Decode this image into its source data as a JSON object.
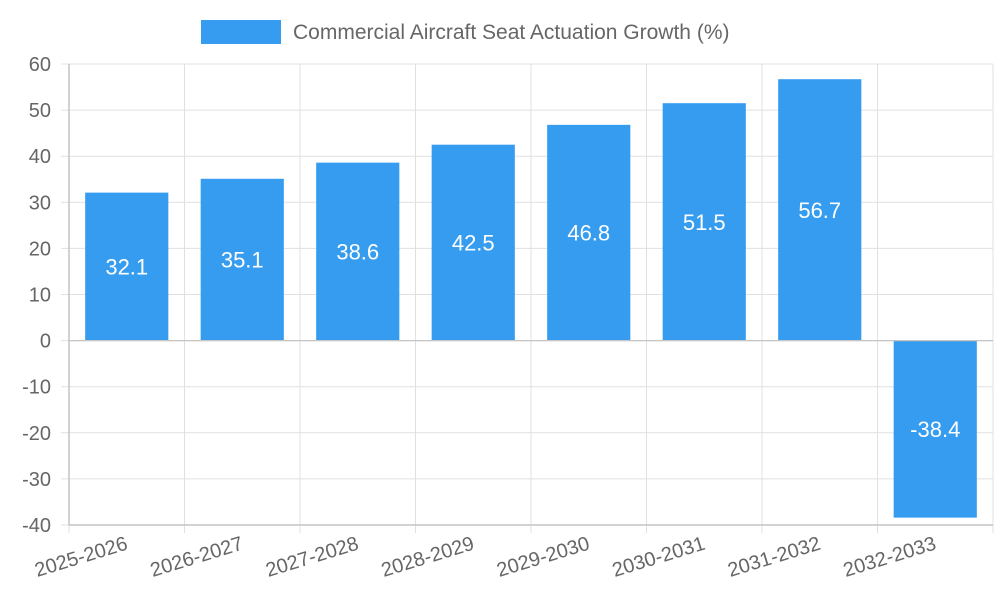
{
  "chart_data": {
    "type": "bar",
    "title": "",
    "xlabel": "",
    "ylabel": "",
    "categories": [
      "2025-2026",
      "2026-2027",
      "2027-2028",
      "2028-2029",
      "2029-2030",
      "2030-2031",
      "2031-2032",
      "2032-2033"
    ],
    "series": [
      {
        "name": "Commercial Aircraft Seat Actuation Growth (%)",
        "values": [
          32.1,
          35.1,
          38.6,
          42.5,
          46.8,
          51.5,
          56.7,
          -38.4
        ],
        "color": "#369cf0"
      }
    ],
    "data_labels": [
      "32.1",
      "35.1",
      "38.6",
      "42.5",
      "46.8",
      "51.5",
      "56.7",
      "-38.4"
    ],
    "ylim": [
      -40,
      60
    ],
    "yticks": [
      60,
      50,
      40,
      30,
      20,
      10,
      0,
      -10,
      -20,
      -30,
      -40
    ],
    "ytick_labels": [
      "60",
      "50",
      "40",
      "30",
      "20",
      "10",
      "0",
      "-10",
      "-20",
      "-30",
      "-40"
    ],
    "grid": true,
    "legend_position": "top-center",
    "colors": {
      "grid": "#e0e0e0",
      "axis": "#c4c4c4",
      "text": "#666666",
      "label": "#ffffff"
    }
  }
}
